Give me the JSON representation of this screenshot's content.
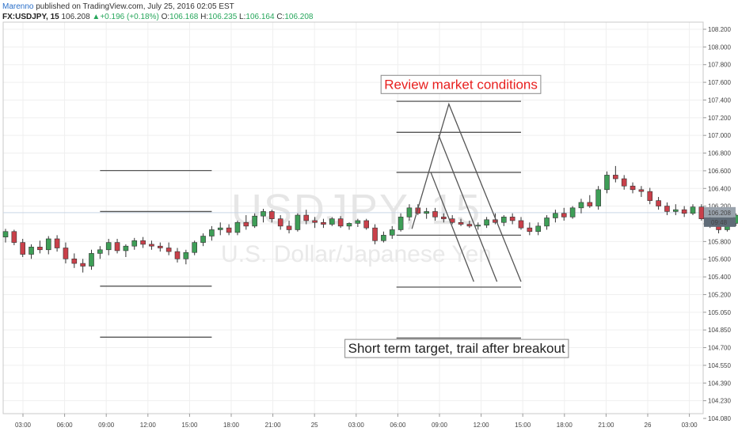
{
  "header": {
    "line1_author": "Marenno",
    "line1_rest": " published on TradingView.com, July 25, 2016 02:05 EST",
    "symbol": "FX:USDJPY, 15",
    "last": "106.208",
    "change": "+0.196 (+0.18%)",
    "o_label": "O:",
    "o": "106.168",
    "h_label": "H:",
    "h": "106.235",
    "l_label": "L:",
    "l": "106.164",
    "c_label": "C:",
    "c": "106.208",
    "up_arrow": "▲"
  },
  "watermark": {
    "symbol": "USDJPY, 15",
    "name": "U.S. Dollar/Japanese Yen"
  },
  "colors": {
    "up": "#3e9e57",
    "down": "#c9404a",
    "grid": "#efefef",
    "lines": "#555555",
    "price_tag": "#9aa3ad",
    "time_tag": "#5f6b77",
    "red_text": "#e8201f"
  },
  "chart_data": {
    "type": "candlestick",
    "ylim": [
      104.0,
      108.3
    ],
    "y_ticks": [
      "108.200",
      "108.000",
      "107.800",
      "107.600",
      "107.400",
      "107.200",
      "107.000",
      "106.800",
      "106.600",
      "106.400",
      "106.200",
      "106.000",
      "105.800",
      "105.600",
      "105.400",
      "105.200",
      "105.050",
      "104.850",
      "104.700",
      "104.550",
      "104.390",
      "104.230",
      "104.080"
    ],
    "x_ticks": [
      "03:00",
      "06:00",
      "09:00",
      "12:00",
      "15:00",
      "18:00",
      "21:00",
      "25",
      "03:00",
      "06:00",
      "09:00",
      "12:00",
      "15:00",
      "18:00",
      "21:00",
      "26",
      "03:00"
    ],
    "last_price_label": "106.208",
    "countdown_label": "09:48",
    "candles": [
      [
        105.94,
        106.03,
        105.88,
        106.0
      ],
      [
        106.0,
        106.02,
        105.85,
        105.88
      ],
      [
        105.88,
        105.92,
        105.72,
        105.75
      ],
      [
        105.75,
        105.86,
        105.7,
        105.83
      ],
      [
        105.83,
        105.9,
        105.76,
        105.8
      ],
      [
        105.8,
        105.95,
        105.75,
        105.92
      ],
      [
        105.92,
        105.96,
        105.78,
        105.82
      ],
      [
        105.82,
        105.88,
        105.65,
        105.7
      ],
      [
        105.7,
        105.76,
        105.6,
        105.65
      ],
      [
        105.65,
        105.7,
        105.55,
        105.62
      ],
      [
        105.62,
        105.8,
        105.58,
        105.76
      ],
      [
        105.76,
        105.84,
        105.7,
        105.8
      ],
      [
        105.8,
        105.92,
        105.74,
        105.88
      ],
      [
        105.88,
        105.92,
        105.76,
        105.79
      ],
      [
        105.79,
        105.86,
        105.72,
        105.84
      ],
      [
        105.84,
        105.93,
        105.8,
        105.9
      ],
      [
        105.9,
        105.94,
        105.82,
        105.86
      ],
      [
        105.86,
        105.9,
        105.8,
        105.84
      ],
      [
        105.84,
        105.88,
        105.78,
        105.82
      ],
      [
        105.82,
        105.88,
        105.74,
        105.78
      ],
      [
        105.78,
        105.82,
        105.66,
        105.7
      ],
      [
        105.7,
        105.8,
        105.64,
        105.77
      ],
      [
        105.77,
        105.9,
        105.74,
        105.88
      ],
      [
        105.88,
        105.98,
        105.84,
        105.95
      ],
      [
        105.95,
        106.06,
        105.9,
        106.02
      ],
      [
        106.02,
        106.1,
        105.96,
        106.04
      ],
      [
        106.04,
        106.08,
        105.96,
        105.99
      ],
      [
        105.99,
        106.12,
        105.96,
        106.1
      ],
      [
        106.1,
        106.18,
        106.02,
        106.06
      ],
      [
        106.06,
        106.2,
        106.04,
        106.17
      ],
      [
        106.17,
        106.25,
        106.1,
        106.22
      ],
      [
        106.22,
        106.24,
        106.1,
        106.14
      ],
      [
        106.14,
        106.18,
        106.02,
        106.06
      ],
      [
        106.06,
        106.12,
        105.98,
        106.02
      ],
      [
        106.02,
        106.2,
        106.0,
        106.18
      ],
      [
        106.18,
        106.24,
        106.08,
        106.12
      ],
      [
        106.12,
        106.16,
        106.04,
        106.1
      ],
      [
        106.1,
        106.14,
        106.04,
        106.08
      ],
      [
        106.08,
        106.16,
        106.06,
        106.14
      ],
      [
        106.14,
        106.17,
        106.04,
        106.06
      ],
      [
        106.06,
        106.1,
        106.02,
        106.09
      ],
      [
        106.09,
        106.14,
        106.05,
        106.12
      ],
      [
        106.12,
        106.14,
        106.02,
        106.04
      ],
      [
        106.04,
        106.08,
        105.86,
        105.9
      ],
      [
        105.9,
        106.0,
        105.88,
        105.96
      ],
      [
        105.96,
        106.06,
        105.92,
        106.02
      ],
      [
        106.02,
        106.2,
        106.0,
        106.16
      ],
      [
        106.16,
        106.3,
        106.12,
        106.26
      ],
      [
        106.26,
        106.3,
        106.18,
        106.2
      ],
      [
        106.2,
        106.26,
        106.14,
        106.22
      ],
      [
        106.22,
        106.26,
        106.12,
        106.16
      ],
      [
        106.16,
        106.2,
        106.1,
        106.14
      ],
      [
        106.14,
        106.18,
        106.08,
        106.1
      ],
      [
        106.1,
        106.14,
        106.06,
        106.08
      ],
      [
        106.08,
        106.12,
        106.04,
        106.06
      ],
      [
        106.06,
        106.1,
        106.02,
        106.07
      ],
      [
        106.07,
        106.16,
        106.04,
        106.13
      ],
      [
        106.13,
        106.2,
        106.08,
        106.1
      ],
      [
        106.1,
        106.18,
        106.06,
        106.16
      ],
      [
        106.16,
        106.2,
        106.08,
        106.12
      ],
      [
        106.12,
        106.16,
        106.02,
        106.04
      ],
      [
        106.04,
        106.1,
        105.96,
        106.0
      ],
      [
        106.0,
        106.1,
        105.96,
        106.06
      ],
      [
        106.06,
        106.18,
        106.02,
        106.15
      ],
      [
        106.15,
        106.24,
        106.1,
        106.2
      ],
      [
        106.2,
        106.26,
        106.12,
        106.16
      ],
      [
        106.16,
        106.28,
        106.14,
        106.26
      ],
      [
        106.26,
        106.36,
        106.2,
        106.32
      ],
      [
        106.32,
        106.4,
        106.26,
        106.28
      ],
      [
        106.28,
        106.5,
        106.24,
        106.46
      ],
      [
        106.46,
        106.66,
        106.42,
        106.62
      ],
      [
        106.62,
        106.72,
        106.54,
        106.58
      ],
      [
        106.58,
        106.62,
        106.46,
        106.5
      ],
      [
        106.5,
        106.54,
        106.42,
        106.46
      ],
      [
        106.46,
        106.5,
        106.38,
        106.44
      ],
      [
        106.44,
        106.48,
        106.3,
        106.34
      ],
      [
        106.34,
        106.38,
        106.24,
        106.28
      ],
      [
        106.28,
        106.32,
        106.18,
        106.22
      ],
      [
        106.22,
        106.3,
        106.18,
        106.24
      ],
      [
        106.24,
        106.28,
        106.16,
        106.2
      ],
      [
        106.2,
        106.3,
        106.18,
        106.27
      ],
      [
        106.27,
        106.3,
        106.12,
        106.14
      ],
      [
        106.14,
        106.18,
        106.04,
        106.08
      ],
      [
        106.08,
        106.1,
        105.98,
        106.02
      ],
      [
        106.02,
        106.1,
        106.0,
        106.09
      ],
      [
        106.09,
        106.2,
        106.06,
        106.18
      ],
      [
        106.18,
        106.24,
        106.14,
        106.21
      ]
    ],
    "horizontal_lines": [
      {
        "x_start": 11.0,
        "x_end": 24.0,
        "y": 106.67
      },
      {
        "x_start": 11.0,
        "x_end": 24.0,
        "y": 106.22
      },
      {
        "x_start": 11.0,
        "x_end": 24.0,
        "y": 105.4
      },
      {
        "x_start": 11.0,
        "x_end": 24.0,
        "y": 104.84
      },
      {
        "x_start": 45.5,
        "x_end": 60.0,
        "y": 107.43
      },
      {
        "x_start": 45.5,
        "x_end": 60.0,
        "y": 107.09
      },
      {
        "x_start": 45.5,
        "x_end": 60.0,
        "y": 106.65
      },
      {
        "x_start": 45.5,
        "x_end": 60.0,
        "y": 105.96
      },
      {
        "x_start": 45.5,
        "x_end": 60.0,
        "y": 105.39
      },
      {
        "x_start": 45.5,
        "x_end": 60.0,
        "y": 104.83
      }
    ],
    "projection_paths": [
      [
        [
          47.3,
          106.03
        ],
        [
          51.6,
          107.4
        ],
        [
          60.0,
          105.45
        ]
      ],
      [
        [
          50.4,
          107.06
        ],
        [
          57.2,
          105.45
        ]
      ],
      [
        [
          49.5,
          106.65
        ],
        [
          54.5,
          105.45
        ]
      ]
    ],
    "annotations": [
      {
        "text": "Review market conditions",
        "color": "#e8201f",
        "x": 53.0,
        "y": 107.62
      },
      {
        "text": "Short term target, trail after breakout",
        "color": "#222222",
        "x": 52.5,
        "y": 104.72
      }
    ]
  }
}
